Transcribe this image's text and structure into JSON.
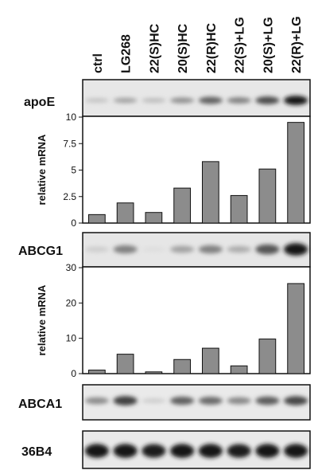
{
  "lanes": [
    "ctrl",
    "LG268",
    "22(S)HC",
    "20(S)HC",
    "22(R)HC",
    "22(S)+LG",
    "20(S)+LG",
    "22(R)+LG"
  ],
  "blots": {
    "apoE": "apoE",
    "abcg1": "ABCG1",
    "abca1": "ABCA1",
    "b36b4": "36B4"
  },
  "chart_data": [
    {
      "type": "bar",
      "categories": [
        "ctrl",
        "LG268",
        "22(S)HC",
        "20(S)HC",
        "22(R)HC",
        "22(S)+LG",
        "20(S)+LG",
        "22(R)+LG"
      ],
      "values": [
        0.8,
        1.9,
        1.0,
        3.3,
        5.8,
        2.6,
        5.1,
        9.5
      ],
      "title": "",
      "xlabel": "",
      "ylabel": "relative mRNA",
      "ylim": [
        0,
        10
      ],
      "yticks": [
        "0",
        "2.5",
        "5",
        "7.5",
        "10"
      ],
      "bar_color": "#8c8c8c"
    },
    {
      "type": "bar",
      "categories": [
        "ctrl",
        "LG268",
        "22(S)HC",
        "20(S)HC",
        "22(R)HC",
        "22(S)+LG",
        "20(S)+LG",
        "22(R)+LG"
      ],
      "values": [
        1.0,
        5.5,
        0.5,
        4.0,
        7.2,
        2.2,
        9.8,
        25.5
      ],
      "title": "",
      "xlabel": "",
      "ylabel": "relative mRNA",
      "ylim": [
        0,
        30
      ],
      "yticks": [
        "0",
        "10",
        "20",
        "30"
      ],
      "bar_color": "#8c8c8c"
    }
  ],
  "band_intensity": {
    "apoE": [
      0.15,
      0.3,
      0.18,
      0.38,
      0.6,
      0.45,
      0.7,
      0.95
    ],
    "abcg1": [
      0.1,
      0.45,
      0.02,
      0.3,
      0.45,
      0.25,
      0.65,
      0.95
    ],
    "abca1": [
      0.4,
      0.75,
      0.1,
      0.6,
      0.55,
      0.42,
      0.62,
      0.72
    ],
    "b36b4": [
      0.95,
      0.95,
      0.92,
      0.95,
      0.95,
      0.92,
      0.95,
      0.95
    ]
  }
}
